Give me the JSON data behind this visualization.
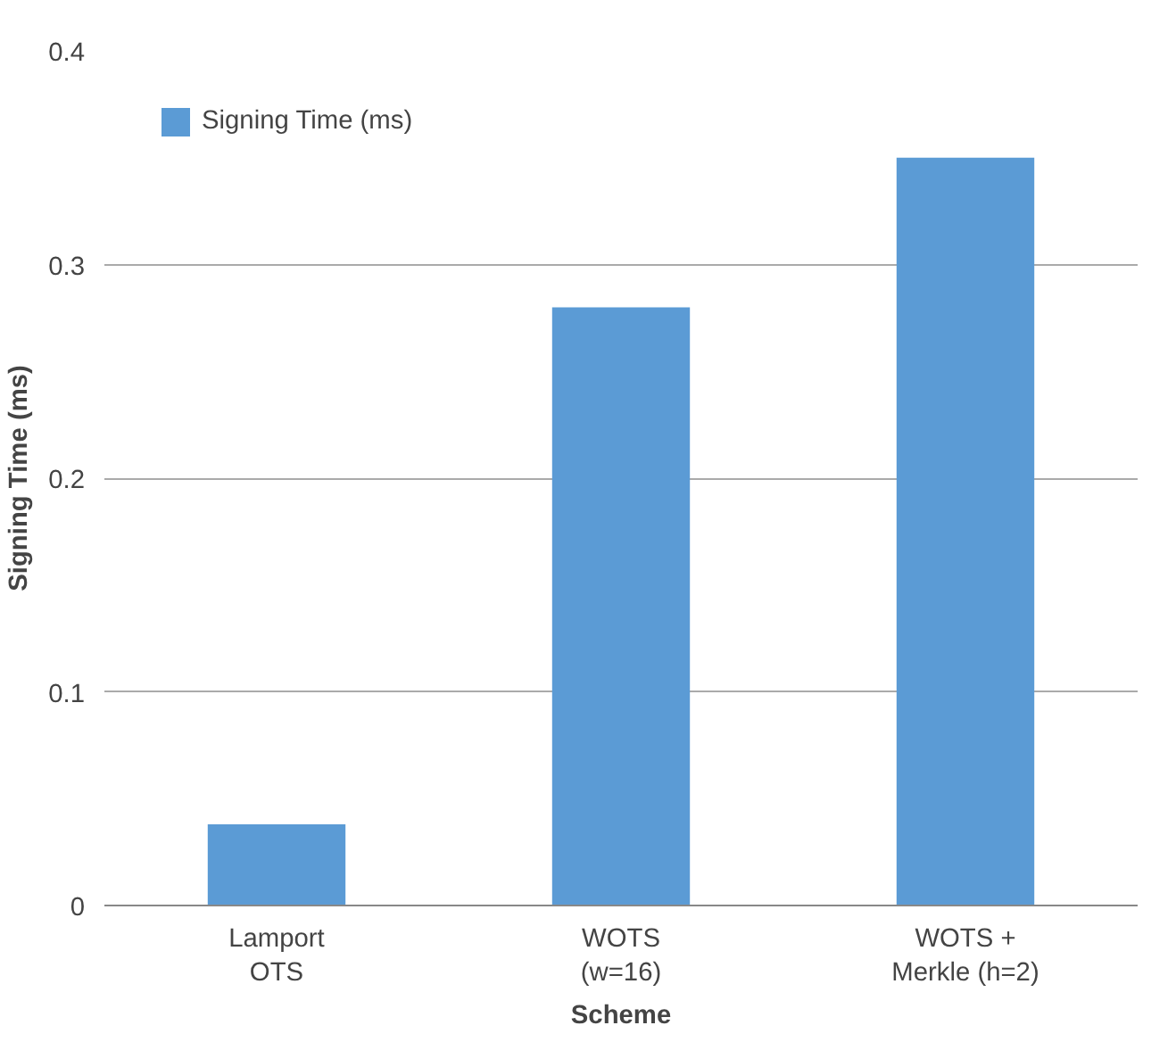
{
  "chart_data": {
    "type": "bar",
    "xlabel": "Scheme",
    "ylabel": "Signing Time (ms)",
    "categories": [
      "Lamport\nOTS",
      "WOTS\n(w=16)",
      "WOTS +\nMerkle (h=2)"
    ],
    "series": [
      {
        "name": "Signing Time (ms)",
        "color": "#5b9bd5",
        "values": [
          0.038,
          0.28,
          0.35
        ]
      }
    ],
    "ylim": [
      0,
      0.4
    ],
    "yticks": [
      {
        "value": 0,
        "label": "0"
      },
      0.1,
      0.2,
      0.3,
      0.4
    ],
    "grid": "y",
    "legend": "top left"
  }
}
